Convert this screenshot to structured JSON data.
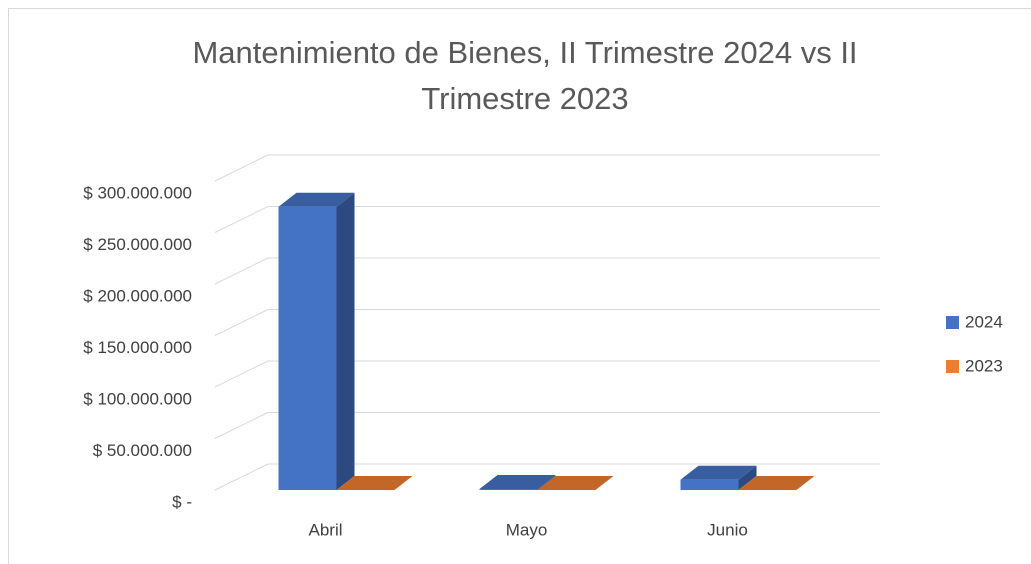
{
  "chart_data": {
    "type": "bar3d",
    "title": "Mantenimiento de Bienes, II Trimestre 2024 vs II Trimestre 2023",
    "categories": [
      "Abril",
      "Mayo",
      "Junio"
    ],
    "series": [
      {
        "name": "2024",
        "color": "#4472c4",
        "values": [
          275000000,
          1000000,
          10000000
        ]
      },
      {
        "name": "2023",
        "color": "#ed7d31",
        "values": [
          0,
          0,
          0
        ]
      }
    ],
    "ylim": [
      0,
      300000000
    ],
    "yticks": [
      {
        "value": 0,
        "label": "$ -"
      },
      {
        "value": 50000000,
        "label": "$ 50.000.000"
      },
      {
        "value": 100000000,
        "label": "$ 100.000.000"
      },
      {
        "value": 150000000,
        "label": "$ 150.000.000"
      },
      {
        "value": 200000000,
        "label": "$ 200.000.000"
      },
      {
        "value": 250000000,
        "label": "$ 250.000.000"
      },
      {
        "value": 300000000,
        "label": "$ 300.000.000"
      }
    ],
    "grid": true,
    "legend": "right"
  }
}
